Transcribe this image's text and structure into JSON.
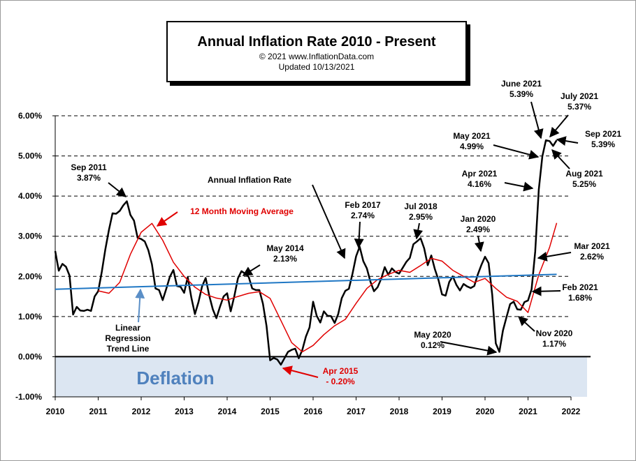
{
  "header": {
    "title": "Annual  Inflation  Rate 2010 - Present",
    "copyright": "© 2021  www.InflationData.com",
    "updated": "Updated  10/13/2021"
  },
  "chart_data": {
    "type": "line",
    "title": "Annual  Inflation  Rate 2010 - Present",
    "xlabel": "",
    "ylabel": "",
    "xlim": [
      2010,
      2022
    ],
    "ylim": [
      -1.0,
      6.0
    ],
    "x_ticks": [
      "2010",
      "2011",
      "2012",
      "2013",
      "2014",
      "2015",
      "2016",
      "2017",
      "2018",
      "2019",
      "2020",
      "2021",
      "2022"
    ],
    "y_ticks": [
      "-1.00%",
      "0.00%",
      "1.00%",
      "2.00%",
      "3.00%",
      "4.00%",
      "5.00%",
      "6.00%"
    ],
    "grid": "horizontal-dashed",
    "deflation_label": "Deflation",
    "series": [
      {
        "name": "Annual Inflation Rate",
        "color": "#000000",
        "x": [
          2010.0,
          2010.083,
          2010.167,
          2010.25,
          2010.333,
          2010.417,
          2010.5,
          2010.583,
          2010.667,
          2010.75,
          2010.833,
          2010.917,
          2011.0,
          2011.083,
          2011.167,
          2011.25,
          2011.333,
          2011.417,
          2011.5,
          2011.583,
          2011.667,
          2011.75,
          2011.833,
          2011.917,
          2012.0,
          2012.083,
          2012.167,
          2012.25,
          2012.333,
          2012.417,
          2012.5,
          2012.583,
          2012.667,
          2012.75,
          2012.833,
          2012.917,
          2013.0,
          2013.083,
          2013.167,
          2013.25,
          2013.333,
          2013.417,
          2013.5,
          2013.583,
          2013.667,
          2013.75,
          2013.833,
          2013.917,
          2014.0,
          2014.083,
          2014.167,
          2014.25,
          2014.333,
          2014.417,
          2014.5,
          2014.583,
          2014.667,
          2014.75,
          2014.833,
          2014.917,
          2015.0,
          2015.083,
          2015.167,
          2015.25,
          2015.333,
          2015.417,
          2015.5,
          2015.583,
          2015.667,
          2015.75,
          2015.833,
          2015.917,
          2016.0,
          2016.083,
          2016.167,
          2016.25,
          2016.333,
          2016.417,
          2016.5,
          2016.583,
          2016.667,
          2016.75,
          2016.833,
          2016.917,
          2017.0,
          2017.083,
          2017.167,
          2017.25,
          2017.333,
          2017.417,
          2017.5,
          2017.583,
          2017.667,
          2017.75,
          2017.833,
          2017.917,
          2018.0,
          2018.083,
          2018.167,
          2018.25,
          2018.333,
          2018.417,
          2018.5,
          2018.583,
          2018.667,
          2018.75,
          2018.833,
          2018.917,
          2019.0,
          2019.083,
          2019.167,
          2019.25,
          2019.333,
          2019.417,
          2019.5,
          2019.583,
          2019.667,
          2019.75,
          2019.833,
          2019.917,
          2020.0,
          2020.083,
          2020.167,
          2020.25,
          2020.333,
          2020.417,
          2020.5,
          2020.583,
          2020.667,
          2020.75,
          2020.833,
          2020.917,
          2021.0,
          2021.083,
          2021.167,
          2021.25,
          2021.333,
          2021.417,
          2021.5,
          2021.583,
          2021.667
        ],
        "values": [
          2.63,
          2.14,
          2.31,
          2.24,
          2.02,
          1.05,
          1.24,
          1.15,
          1.14,
          1.17,
          1.14,
          1.5,
          1.63,
          2.11,
          2.68,
          3.16,
          3.57,
          3.56,
          3.63,
          3.77,
          3.87,
          3.53,
          3.39,
          2.96,
          2.93,
          2.87,
          2.65,
          2.3,
          1.7,
          1.66,
          1.41,
          1.69,
          1.99,
          2.16,
          1.76,
          1.74,
          1.59,
          1.98,
          1.47,
          1.06,
          1.36,
          1.75,
          1.96,
          1.52,
          1.18,
          0.96,
          1.24,
          1.5,
          1.58,
          1.13,
          1.51,
          1.95,
          2.13,
          2.07,
          1.99,
          1.7,
          1.66,
          1.66,
          1.32,
          0.76,
          -0.09,
          -0.03,
          -0.07,
          -0.2,
          -0.04,
          0.12,
          0.17,
          0.2,
          -0.04,
          0.17,
          0.5,
          0.73,
          1.37,
          1.02,
          0.85,
          1.13,
          1.02,
          1.01,
          0.84,
          1.06,
          1.46,
          1.64,
          1.69,
          2.07,
          2.5,
          2.74,
          2.38,
          2.2,
          1.87,
          1.63,
          1.73,
          1.94,
          2.23,
          2.04,
          2.2,
          2.11,
          2.07,
          2.21,
          2.36,
          2.46,
          2.8,
          2.87,
          2.95,
          2.7,
          2.28,
          2.52,
          2.18,
          1.91,
          1.55,
          1.52,
          1.86,
          2.0,
          1.79,
          1.65,
          1.81,
          1.75,
          1.71,
          1.76,
          2.05,
          2.29,
          2.49,
          2.33,
          1.54,
          0.33,
          0.12,
          0.65,
          0.99,
          1.31,
          1.37,
          1.18,
          1.17,
          1.36,
          1.4,
          1.68,
          2.62,
          4.16,
          4.99,
          5.39,
          5.37,
          5.25,
          5.39
        ]
      },
      {
        "name": "12 Month Moving Average",
        "color": "#e00000",
        "x": [
          2011.0,
          2011.25,
          2011.5,
          2011.75,
          2012.0,
          2012.25,
          2012.5,
          2012.75,
          2013.0,
          2013.25,
          2013.5,
          2013.75,
          2014.0,
          2014.25,
          2014.5,
          2014.75,
          2015.0,
          2015.25,
          2015.5,
          2015.75,
          2016.0,
          2016.25,
          2016.5,
          2016.75,
          2017.0,
          2017.25,
          2017.5,
          2017.75,
          2018.0,
          2018.25,
          2018.5,
          2018.75,
          2019.0,
          2019.25,
          2019.5,
          2019.75,
          2020.0,
          2020.25,
          2020.5,
          2020.75,
          2021.0,
          2021.25,
          2021.5,
          2021.667
        ],
        "values": [
          1.64,
          1.58,
          1.85,
          2.55,
          3.1,
          3.32,
          2.9,
          2.35,
          2.0,
          1.73,
          1.55,
          1.46,
          1.41,
          1.5,
          1.58,
          1.62,
          1.45,
          0.9,
          0.35,
          0.12,
          0.28,
          0.55,
          0.77,
          0.93,
          1.33,
          1.7,
          1.92,
          2.05,
          2.15,
          2.1,
          2.27,
          2.45,
          2.38,
          2.15,
          2.0,
          1.85,
          1.95,
          1.7,
          1.48,
          1.38,
          1.1,
          2.04,
          2.72,
          3.33
        ]
      },
      {
        "name": "Linear Regression Trend Line",
        "color": "#1f77c4",
        "x": [
          2010.0,
          2021.667
        ],
        "values": [
          1.68,
          2.05
        ]
      }
    ],
    "annotations": [
      {
        "key": "sep2011",
        "l1": "Sep 2011",
        "l2": "3.87%"
      },
      {
        "key": "ma",
        "l1": "12 Month Moving Average"
      },
      {
        "key": "air",
        "l1": "Annual Inflation Rate"
      },
      {
        "key": "may2014",
        "l1": "May 2014",
        "l2": "2.13%"
      },
      {
        "key": "feb2017",
        "l1": "Feb 2017",
        "l2": "2.74%"
      },
      {
        "key": "jul2018",
        "l1": "Jul 2018",
        "l2": "2.95%"
      },
      {
        "key": "jan2020",
        "l1": "Jan 2020",
        "l2": "2.49%"
      },
      {
        "key": "may2020",
        "l1": "May 2020",
        "l2": "0.12%"
      },
      {
        "key": "apr2015",
        "l1": "Apr 2015",
        "l2": "- 0.20%"
      },
      {
        "key": "lin",
        "l1": "Linear",
        "l2": "Regression",
        "l3": "Trend Line"
      },
      {
        "key": "june2021",
        "l1": "June 2021",
        "l2": "5.39%"
      },
      {
        "key": "july2021",
        "l1": "July 2021",
        "l2": "5.37%"
      },
      {
        "key": "sep2021",
        "l1": "Sep 2021",
        "l2": "5.39%"
      },
      {
        "key": "may2021",
        "l1": "May 2021",
        "l2": "4.99%"
      },
      {
        "key": "aug2021",
        "l1": "Aug 2021",
        "l2": "5.25%"
      },
      {
        "key": "apr2021",
        "l1": "Apr 2021",
        "l2": "4.16%"
      },
      {
        "key": "mar2021",
        "l1": "Mar 2021",
        "l2": "2.62%"
      },
      {
        "key": "feb2021",
        "l1": "Feb 2021",
        "l2": "1.68%"
      },
      {
        "key": "nov2020",
        "l1": "Nov 2020",
        "l2": "1.17%"
      }
    ]
  }
}
